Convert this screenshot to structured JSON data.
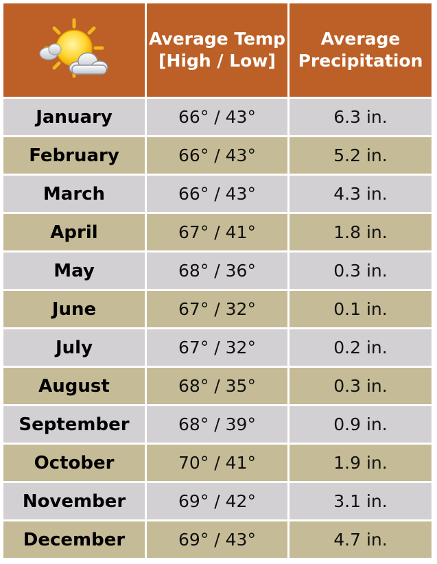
{
  "table": {
    "headers": {
      "temp_line1": "Average Temp",
      "temp_line2": "[High / Low]",
      "precip_line1": "Average",
      "precip_line2": "Precipitation"
    },
    "icon": "sun-behind-cloud-icon",
    "colors": {
      "header": "#BC6027",
      "row_gray": "#D2D0D3",
      "row_tan": "#C5BB96"
    },
    "rows": [
      {
        "month": "January",
        "temp": "66° / 43°",
        "precip": "6.3 in."
      },
      {
        "month": "February",
        "temp": "66° / 43°",
        "precip": "5.2 in."
      },
      {
        "month": "March",
        "temp": "66° / 43°",
        "precip": "4.3 in."
      },
      {
        "month": "April",
        "temp": "67° / 41°",
        "precip": "1.8 in."
      },
      {
        "month": "May",
        "temp": "68° / 36°",
        "precip": "0.3 in."
      },
      {
        "month": "June",
        "temp": "67° / 32°",
        "precip": "0.1 in."
      },
      {
        "month": "July",
        "temp": "67° / 32°",
        "precip": "0.2 in."
      },
      {
        "month": "August",
        "temp": "68° / 35°",
        "precip": "0.3 in."
      },
      {
        "month": "September",
        "temp": "68° / 39°",
        "precip": "0.9 in."
      },
      {
        "month": "October",
        "temp": "70° / 41°",
        "precip": "1.9 in."
      },
      {
        "month": "November",
        "temp": "69° / 42°",
        "precip": "3.1 in."
      },
      {
        "month": "December",
        "temp": "69° / 43°",
        "precip": "4.7 in."
      }
    ]
  }
}
